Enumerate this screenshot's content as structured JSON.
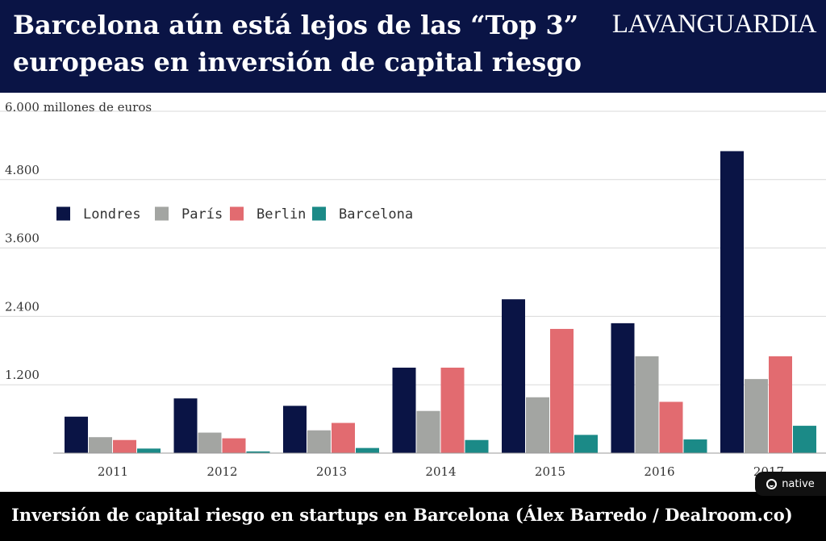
{
  "header": {
    "title": "Barcelona aún está lejos de las “Top 3” europeas en inversión de capital riesgo",
    "brand": "LAVANGUARDIA"
  },
  "chart_data": {
    "type": "bar",
    "title": "Barcelona aún está lejos de las “Top 3” europeas en inversión de capital riesgo",
    "ylabel": "6.000 millones de euros",
    "xlabel": "",
    "ylim": [
      0,
      6000
    ],
    "yticks": [
      {
        "value": 1200,
        "label": "1.200"
      },
      {
        "value": 2400,
        "label": "2.400"
      },
      {
        "value": 3600,
        "label": "3.600"
      },
      {
        "value": 4800,
        "label": "4.800"
      }
    ],
    "categories": [
      "2011",
      "2012",
      "2013",
      "2014",
      "2015",
      "2016",
      "2017"
    ],
    "series": [
      {
        "name": "Londres",
        "color": "#0a1445",
        "values": [
          640,
          960,
          830,
          1500,
          2700,
          2280,
          5300
        ]
      },
      {
        "name": "París",
        "color": "#a3a5a2",
        "values": [
          280,
          360,
          400,
          740,
          980,
          1700,
          1300
        ]
      },
      {
        "name": "Berlin",
        "color": "#e26b70",
        "values": [
          230,
          260,
          530,
          1500,
          2180,
          900,
          1700
        ]
      },
      {
        "name": "Barcelona",
        "color": "#1b8a87",
        "values": [
          80,
          30,
          90,
          230,
          320,
          240,
          480
        ]
      }
    ],
    "legend_position": "top-left",
    "grid": true
  },
  "caption": {
    "text": "Inversión de capital riesgo en startups en Barcelona (Álex Barredo / Dealroom.co)"
  },
  "badge": {
    "label": "native",
    "icon": "native-logo-icon"
  }
}
